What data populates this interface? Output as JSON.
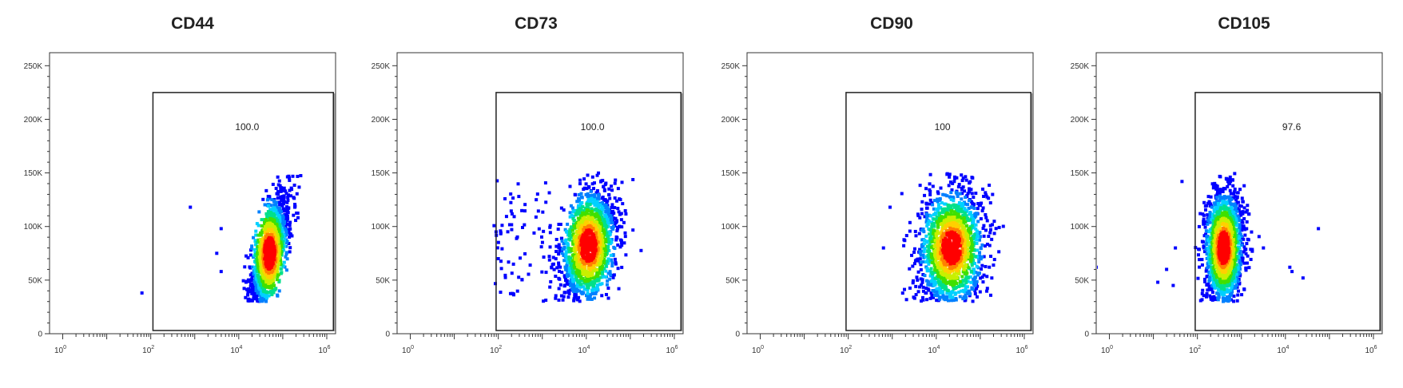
{
  "chart_data": [
    {
      "type": "scatter",
      "title": "CD44",
      "x_scale": "log",
      "xlim_exp": [
        -0.3,
        6.2
      ],
      "x_ticks": [
        {
          "base": "10",
          "exp": "0"
        },
        {
          "base": "10",
          "exp": "2"
        },
        {
          "base": "10",
          "exp": "4"
        },
        {
          "base": "10",
          "exp": "6"
        }
      ],
      "ylim": [
        0,
        262144
      ],
      "y_ticks": [
        "0",
        "50K",
        "100K",
        "150K",
        "200K",
        "250K"
      ],
      "gate": {
        "label": "100.0",
        "x_exp_range": [
          2.05,
          6.15
        ],
        "y_range": [
          0,
          225000
        ]
      },
      "population": {
        "x_exp_center": 4.7,
        "y_center": 75000,
        "x_exp_sd": 0.22,
        "y_sd": 27000,
        "corr": 0.65,
        "y_min": 30000,
        "y_max": 150000
      },
      "outliers": [
        {
          "x_exp": 1.8,
          "y": 38000
        },
        {
          "x_exp": 2.9,
          "y": 118000
        },
        {
          "x_exp": 3.6,
          "y": 98000
        },
        {
          "x_exp": 3.6,
          "y": 58000
        },
        {
          "x_exp": 3.5,
          "y": 75000
        }
      ]
    },
    {
      "type": "scatter",
      "title": "CD73",
      "x_scale": "log",
      "xlim_exp": [
        -0.3,
        6.2
      ],
      "x_ticks": [
        {
          "base": "10",
          "exp": "0"
        },
        {
          "base": "10",
          "exp": "2"
        },
        {
          "base": "10",
          "exp": "4"
        },
        {
          "base": "10",
          "exp": "6"
        }
      ],
      "ylim": [
        0,
        262144
      ],
      "y_ticks": [
        "0",
        "50K",
        "100K",
        "150K",
        "200K",
        "250K"
      ],
      "gate": {
        "label": "100.0",
        "x_exp_range": [
          1.95,
          6.15
        ],
        "y_range": [
          0,
          225000
        ]
      },
      "population": {
        "x_exp_center": 4.05,
        "y_center": 82000,
        "x_exp_sd": 0.32,
        "y_sd": 27000,
        "corr": 0.3,
        "y_min": 30000,
        "y_max": 150000
      },
      "scatter_cloud": {
        "x_exp_range": [
          1.9,
          3.2
        ],
        "y_range": [
          35000,
          145000
        ]
      },
      "outliers": [
        {
          "x_exp": 2.0,
          "y": 70000
        },
        {
          "x_exp": 1.95,
          "y": 95000
        }
      ]
    },
    {
      "type": "scatter",
      "title": "CD90",
      "x_scale": "log",
      "xlim_exp": [
        -0.3,
        6.2
      ],
      "x_ticks": [
        {
          "base": "10",
          "exp": "0"
        },
        {
          "base": "10",
          "exp": "2"
        },
        {
          "base": "10",
          "exp": "4"
        },
        {
          "base": "10",
          "exp": "6"
        }
      ],
      "ylim": [
        0,
        262144
      ],
      "y_ticks": [
        "0",
        "50K",
        "100K",
        "150K",
        "200K",
        "250K"
      ],
      "gate": {
        "label": "100",
        "x_exp_range": [
          1.95,
          6.15
        ],
        "y_range": [
          0,
          225000
        ]
      },
      "population": {
        "x_exp_center": 4.35,
        "y_center": 80000,
        "x_exp_sd": 0.38,
        "y_sd": 28000,
        "corr": 0.2,
        "y_min": 30000,
        "y_max": 150000
      },
      "outliers": [
        {
          "x_exp": 2.8,
          "y": 80000
        },
        {
          "x_exp": 2.95,
          "y": 118000
        },
        {
          "x_exp": 5.3,
          "y": 64000
        }
      ]
    },
    {
      "type": "scatter",
      "title": "CD105",
      "x_scale": "log",
      "xlim_exp": [
        -0.3,
        6.2
      ],
      "x_ticks": [
        {
          "base": "10",
          "exp": "0"
        },
        {
          "base": "10",
          "exp": "2"
        },
        {
          "base": "10",
          "exp": "4"
        },
        {
          "base": "10",
          "exp": "6"
        }
      ],
      "ylim": [
        0,
        262144
      ],
      "y_ticks": [
        "0",
        "50K",
        "100K",
        "150K",
        "200K",
        "250K"
      ],
      "gate": {
        "label": "97.6",
        "x_exp_range": [
          1.95,
          6.15
        ],
        "y_range": [
          0,
          225000
        ]
      },
      "population": {
        "x_exp_center": 2.6,
        "y_center": 80000,
        "x_exp_sd": 0.22,
        "y_sd": 27000,
        "corr": 0.1,
        "y_min": 30000,
        "y_max": 150000
      },
      "outliers": [
        {
          "x_exp": -0.3,
          "y": 62000
        },
        {
          "x_exp": 1.45,
          "y": 45000
        },
        {
          "x_exp": 1.5,
          "y": 80000
        },
        {
          "x_exp": 1.1,
          "y": 48000
        },
        {
          "x_exp": 1.65,
          "y": 142000
        },
        {
          "x_exp": 1.3,
          "y": 60000
        },
        {
          "x_exp": 3.5,
          "y": 80000
        },
        {
          "x_exp": 4.1,
          "y": 62000
        },
        {
          "x_exp": 4.15,
          "y": 58000
        },
        {
          "x_exp": 4.4,
          "y": 52000
        },
        {
          "x_exp": 4.75,
          "y": 98000
        }
      ]
    }
  ],
  "colors": {
    "density": [
      "#0000ff",
      "#0080ff",
      "#00d0ff",
      "#00e08a",
      "#40e000",
      "#c8f000",
      "#ffd000",
      "#ff8000",
      "#ff0000"
    ],
    "axis": "#333333",
    "gate": "#222222"
  }
}
